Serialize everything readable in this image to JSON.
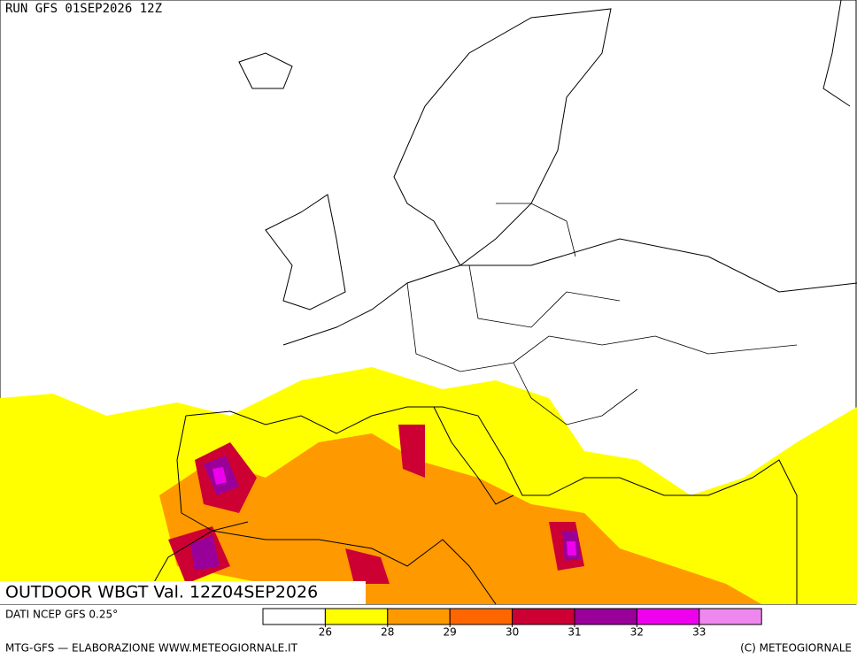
{
  "header": {
    "run": "RUN GFS 01SEP2026 12Z"
  },
  "map": {
    "title": "OUTDOOR WBGT Val. 12Z04SEP2026"
  },
  "legend": {
    "colors": [
      "#ffffff",
      "#ffff00",
      "#ff9900",
      "#ff6600",
      "#cc0033",
      "#990099",
      "#ee00ee",
      "#ee88ee"
    ],
    "ticks": [
      26,
      28,
      29,
      30,
      31,
      32,
      33
    ]
  },
  "footer": {
    "source": "DATI NCEP GFS 0.25°",
    "credit": "MTG-GFS — ELABORAZIONE WWW.METEOGIORNALE.IT",
    "copyright": "(C) METEOGIORNALE"
  }
}
